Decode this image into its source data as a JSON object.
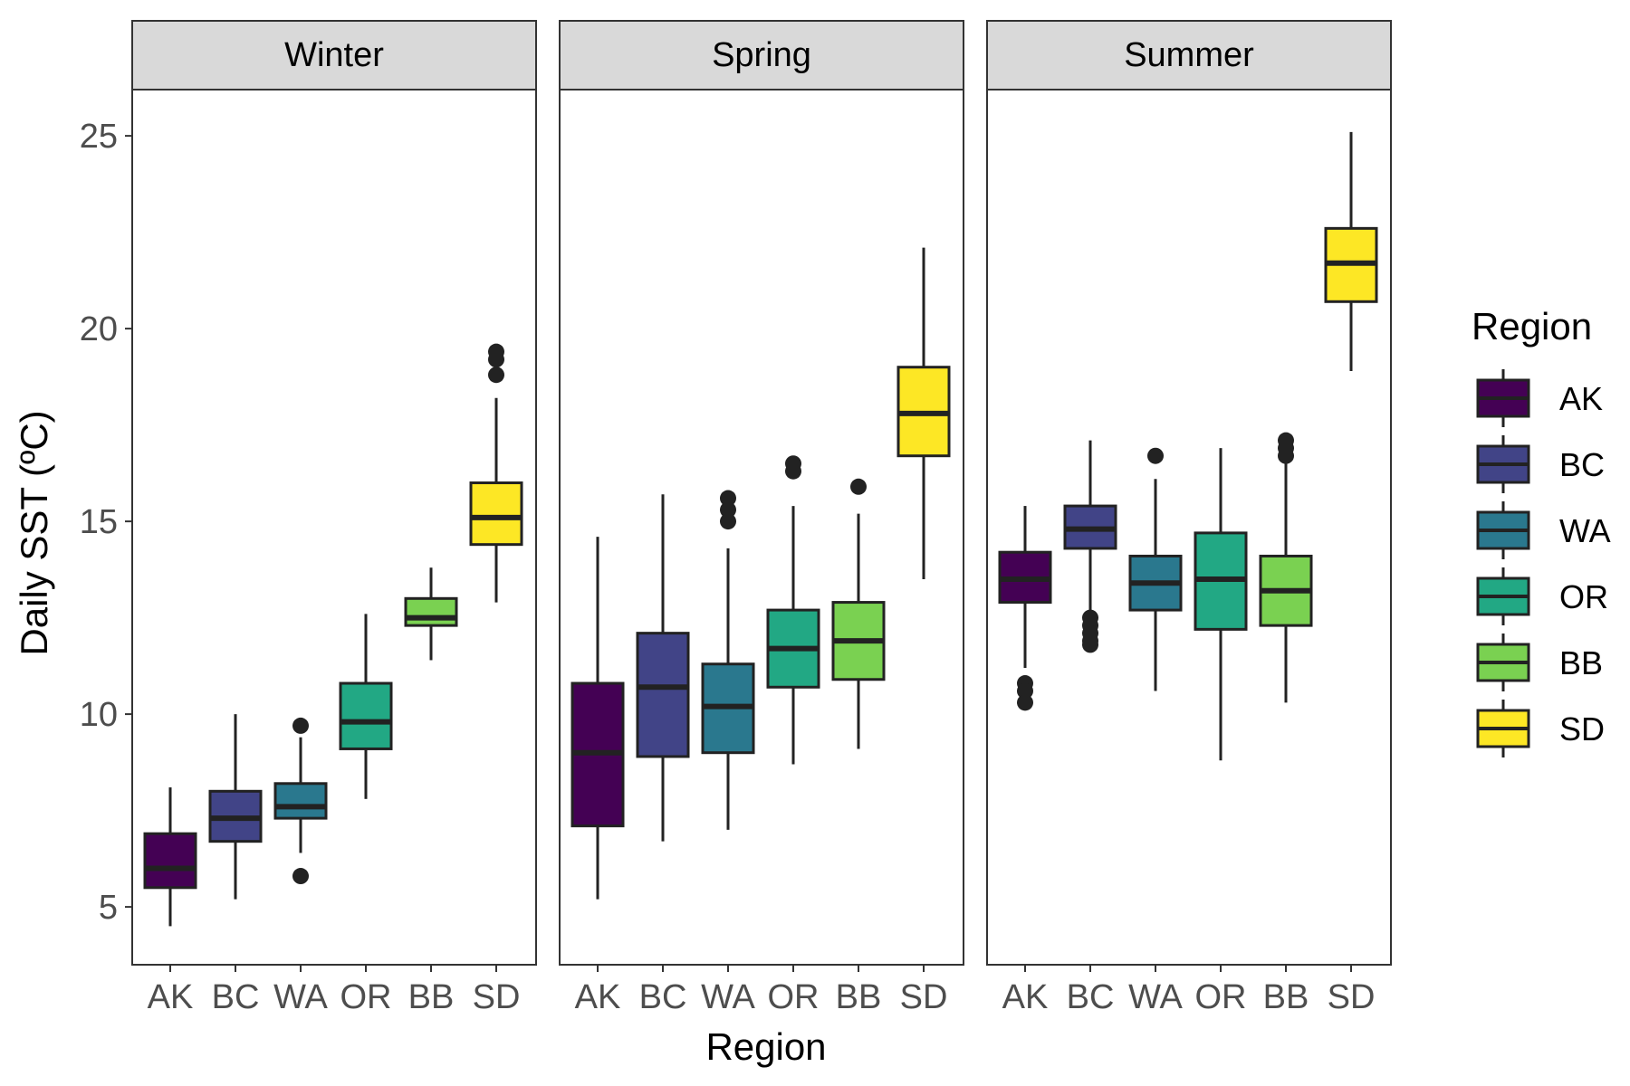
{
  "chart_data": {
    "type": "boxplot",
    "facets": [
      "Winter",
      "Spring",
      "Summer"
    ],
    "categories": [
      "AK",
      "BC",
      "WA",
      "OR",
      "BB",
      "SD"
    ],
    "xlabel": "Region",
    "ylabel": "Daily SST (ºC)",
    "ylim": [
      3.5,
      26.2
    ],
    "yticks": [
      5,
      10,
      15,
      20,
      25
    ],
    "grid": false,
    "legend": {
      "title": "Region",
      "position": "right",
      "entries": [
        "AK",
        "BC",
        "WA",
        "OR",
        "BB",
        "SD"
      ]
    },
    "colors": {
      "AK": "#440154",
      "BC": "#414487",
      "WA": "#2A788E",
      "OR": "#22A884",
      "BB": "#7AD151",
      "SD": "#FDE725"
    },
    "panels": [
      {
        "facet": "Winter",
        "boxes": [
          {
            "category": "AK",
            "lower_whisker": 4.5,
            "q1": 5.5,
            "median": 6.0,
            "q3": 6.9,
            "upper_whisker": 8.1,
            "outliers": []
          },
          {
            "category": "BC",
            "lower_whisker": 5.2,
            "q1": 6.7,
            "median": 7.3,
            "q3": 8.0,
            "upper_whisker": 10.0,
            "outliers": []
          },
          {
            "category": "WA",
            "lower_whisker": 6.4,
            "q1": 7.3,
            "median": 7.6,
            "q3": 8.2,
            "upper_whisker": 9.4,
            "outliers": [
              9.7,
              5.8
            ]
          },
          {
            "category": "OR",
            "lower_whisker": 7.8,
            "q1": 9.1,
            "median": 9.8,
            "q3": 10.8,
            "upper_whisker": 12.6,
            "outliers": []
          },
          {
            "category": "BB",
            "lower_whisker": 11.4,
            "q1": 12.3,
            "median": 12.5,
            "q3": 13.0,
            "upper_whisker": 13.8,
            "outliers": []
          },
          {
            "category": "SD",
            "lower_whisker": 12.9,
            "q1": 14.4,
            "median": 15.1,
            "q3": 16.0,
            "upper_whisker": 18.2,
            "outliers": [
              19.4,
              19.2,
              18.8
            ]
          }
        ]
      },
      {
        "facet": "Spring",
        "boxes": [
          {
            "category": "AK",
            "lower_whisker": 5.2,
            "q1": 7.1,
            "median": 9.0,
            "q3": 10.8,
            "upper_whisker": 14.6,
            "outliers": []
          },
          {
            "category": "BC",
            "lower_whisker": 6.7,
            "q1": 8.9,
            "median": 10.7,
            "q3": 12.1,
            "upper_whisker": 15.7,
            "outliers": []
          },
          {
            "category": "WA",
            "lower_whisker": 7.0,
            "q1": 9.0,
            "median": 10.2,
            "q3": 11.3,
            "upper_whisker": 14.3,
            "outliers": [
              15.6,
              15.3,
              15.0
            ]
          },
          {
            "category": "OR",
            "lower_whisker": 8.7,
            "q1": 10.7,
            "median": 11.7,
            "q3": 12.7,
            "upper_whisker": 15.4,
            "outliers": [
              16.5,
              16.3
            ]
          },
          {
            "category": "BB",
            "lower_whisker": 9.1,
            "q1": 10.9,
            "median": 11.9,
            "q3": 12.9,
            "upper_whisker": 15.2,
            "outliers": [
              15.9
            ]
          },
          {
            "category": "SD",
            "lower_whisker": 13.5,
            "q1": 16.7,
            "median": 17.8,
            "q3": 19.0,
            "upper_whisker": 22.1,
            "outliers": []
          }
        ]
      },
      {
        "facet": "Summer",
        "boxes": [
          {
            "category": "AK",
            "lower_whisker": 11.2,
            "q1": 12.9,
            "median": 13.5,
            "q3": 14.2,
            "upper_whisker": 15.4,
            "outliers": [
              10.8,
              10.6,
              10.3
            ]
          },
          {
            "category": "BC",
            "lower_whisker": 12.7,
            "q1": 14.3,
            "median": 14.8,
            "q3": 15.4,
            "upper_whisker": 17.1,
            "outliers": [
              12.5,
              12.3,
              12.1,
              11.9,
              11.8
            ]
          },
          {
            "category": "WA",
            "lower_whisker": 10.6,
            "q1": 12.7,
            "median": 13.4,
            "q3": 14.1,
            "upper_whisker": 16.1,
            "outliers": [
              16.7
            ]
          },
          {
            "category": "OR",
            "lower_whisker": 8.8,
            "q1": 12.2,
            "median": 13.5,
            "q3": 14.7,
            "upper_whisker": 16.9,
            "outliers": []
          },
          {
            "category": "BB",
            "lower_whisker": 10.3,
            "q1": 12.3,
            "median": 13.2,
            "q3": 14.1,
            "upper_whisker": 16.6,
            "outliers": [
              17.1,
              16.9,
              16.7
            ]
          },
          {
            "category": "SD",
            "lower_whisker": 18.9,
            "q1": 20.7,
            "median": 21.7,
            "q3": 22.6,
            "upper_whisker": 25.1,
            "outliers": []
          }
        ]
      }
    ]
  }
}
